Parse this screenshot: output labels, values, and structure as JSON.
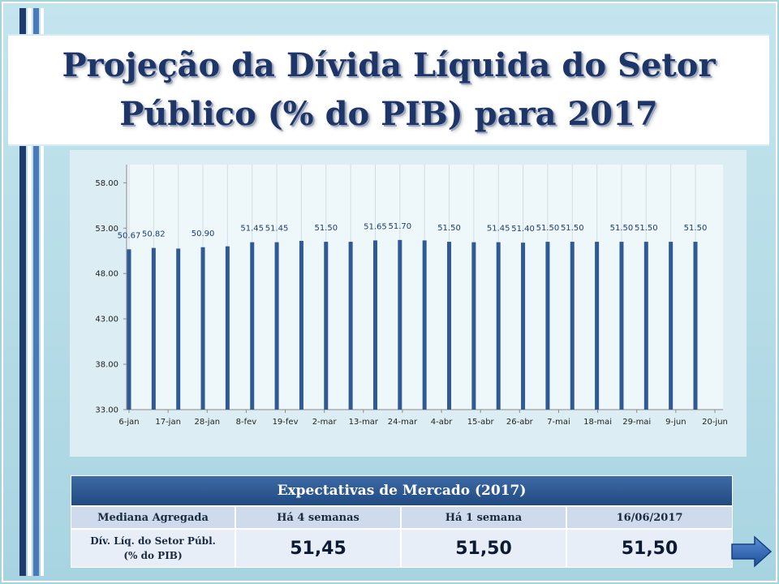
{
  "title": {
    "line1": "Projeção da Dívida Líquida do Setor",
    "line2": "Público (% do PIB) para 2017"
  },
  "chart_data": {
    "type": "bar",
    "title": "",
    "xlabel": "",
    "ylabel": "",
    "ylim": [
      33,
      60
    ],
    "yticks": [
      33,
      38,
      43,
      48,
      53,
      58
    ],
    "ytick_labels": [
      "33.00",
      "38.00",
      "43.00",
      "48.00",
      "53.00",
      "58.00"
    ],
    "grid": "vertical",
    "legend": "none",
    "bar_color": "#2f5a94",
    "x_tick_labels": [
      "6-jan",
      "17-jan",
      "28-jan",
      "8-fev",
      "19-fev",
      "2-mar",
      "13-mar",
      "24-mar",
      "4-abr",
      "15-abr",
      "26-abr",
      "7-mai",
      "18-mai",
      "29-mai",
      "9-jun",
      "20-jun"
    ],
    "values": [
      50.67,
      50.82,
      50.75,
      50.9,
      51.0,
      51.45,
      51.45,
      51.6,
      51.5,
      51.5,
      51.65,
      51.7,
      51.65,
      51.5,
      51.45,
      51.45,
      51.4,
      51.5,
      51.5,
      51.5,
      51.5,
      51.5,
      51.5,
      51.5
    ],
    "data_labels": [
      "50.67",
      "50.82",
      "",
      "50.90",
      "",
      "51.45",
      "51.45",
      "",
      "51.50",
      "",
      "51.65",
      "51.70",
      "",
      "51.50",
      "",
      "51.45",
      "51.40",
      "51.50",
      "51.50",
      "",
      "51.50",
      "51.50",
      "",
      "51.50"
    ]
  },
  "table": {
    "title": "Expectativas de Mercado (2017)",
    "headers": [
      "Mediana Agregada",
      "Há 4 semanas",
      "Há 1 semana",
      "16/06/2017"
    ],
    "row_label_line1": "Dív. Líq. do Setor Públ.",
    "row_label_line2": "(% do PIB)",
    "values": [
      "51,45",
      "51,50",
      "51,50"
    ]
  },
  "colors": {
    "title": "#1e3568",
    "bars": "#2f5a94",
    "table_header": "#214a82"
  },
  "icons": {
    "next": "right-arrow-icon"
  }
}
